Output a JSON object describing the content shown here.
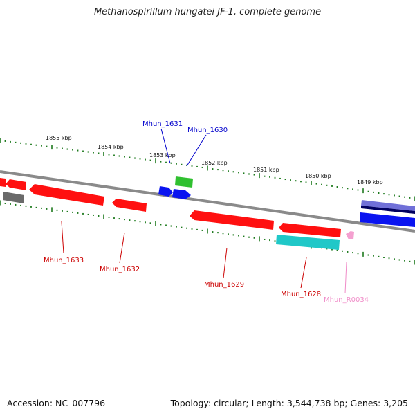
{
  "title": "Methanospirillum hungatei JF-1, complete genome",
  "footer": {
    "accession": "Accession: NC_007796",
    "summary": "Topology: circular; Length: 3,544,738 bp; Genes: 3,205"
  },
  "scale_labels": [
    "1855 kbp",
    "1854 kbp",
    "1853 kbp",
    "1852 kbp",
    "1851 kbp",
    "1850 kbp",
    "1849 kbp"
  ],
  "gene_labels": [
    {
      "id": "Mhun_1631",
      "color": "#0000cc"
    },
    {
      "id": "Mhun_1630",
      "color": "#0000cc"
    },
    {
      "id": "Mhun_1633",
      "color": "#cc0000"
    },
    {
      "id": "Mhun_1632",
      "color": "#cc0000"
    },
    {
      "id": "Mhun_1629",
      "color": "#cc0000"
    },
    {
      "id": "Mhun_1628",
      "color": "#cc0000"
    },
    {
      "id": "Mhun_R0034",
      "color": "#f08cc8"
    }
  ],
  "colors": {
    "backbone": "#8a8a8a",
    "tick": "#1e7a1e",
    "red": "#ff1010",
    "blue": "#0a14f0",
    "green": "#30c030",
    "cyan": "#20c8c8",
    "gray": "#6a6a6a",
    "pink": "#f4a0d0",
    "purple": "#7070d8",
    "navy": "#000060"
  }
}
